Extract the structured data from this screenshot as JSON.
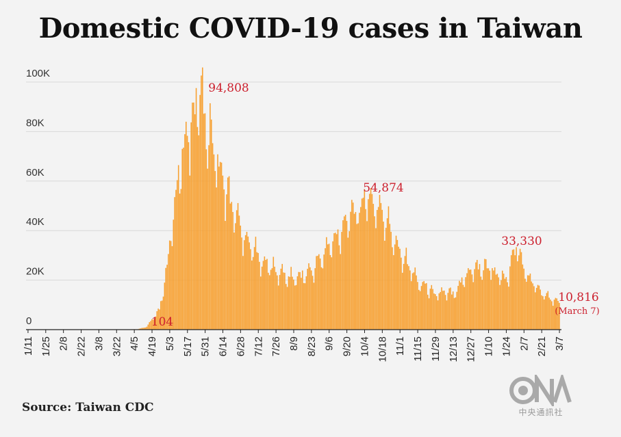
{
  "title": "Domestic COVID-19 cases in Taiwan",
  "source": "Source: Taiwan CDC",
  "logo": {
    "mark": "CNA",
    "text": "中央通訊社"
  },
  "colors": {
    "bar": "#f7a030",
    "annotation": "#cc1f2d",
    "grid": "#d8d8d8"
  },
  "chart_data": {
    "type": "bar",
    "title": "Domestic COVID-19 cases in Taiwan",
    "xlabel": "",
    "ylabel": "",
    "ylim": [
      0,
      100000
    ],
    "grid": true,
    "yticks": [
      {
        "value": 0,
        "label": "0"
      },
      {
        "value": 20000,
        "label": "20K"
      },
      {
        "value": 40000,
        "label": "40K"
      },
      {
        "value": 60000,
        "label": "60K"
      },
      {
        "value": 80000,
        "label": "80K"
      },
      {
        "value": 100000,
        "label": "100K"
      }
    ],
    "xticks": [
      "1/11",
      "1/25",
      "2/8",
      "2/22",
      "3/8",
      "3/22",
      "4/5",
      "4/19",
      "5/3",
      "5/17",
      "5/31",
      "6/14",
      "6/28",
      "7/12",
      "7/26",
      "8/9",
      "8/23",
      "9/6",
      "9/20",
      "10/4",
      "10/18",
      "11/1",
      "11/15",
      "11/29",
      "12/13",
      "12/27",
      "1/10",
      "1/24",
      "2/7",
      "2/21",
      "3/7"
    ],
    "series": [
      {
        "daily_cases": [
          0,
          0,
          0,
          0,
          0,
          0,
          0,
          0,
          0,
          0,
          0,
          0,
          0,
          0,
          0,
          0,
          0,
          0,
          0,
          0,
          0,
          0,
          0,
          0,
          0,
          0,
          0,
          0,
          0,
          0,
          0,
          0,
          0,
          0,
          0,
          0,
          0,
          0,
          0,
          0,
          0,
          0,
          0,
          0,
          0,
          0,
          0,
          0,
          0,
          0,
          0,
          0,
          0,
          0,
          0,
          0,
          0,
          0,
          0,
          0,
          0,
          0,
          0,
          0,
          0,
          0,
          0,
          0,
          0,
          0,
          104,
          0,
          0,
          0,
          0,
          0,
          0,
          0,
          0,
          0,
          0,
          0,
          0,
          0,
          0,
          0,
          0,
          0,
          0,
          0,
          0,
          0,
          0,
          0,
          0,
          0,
          0,
          0,
          0,
          0,
          0,
          0,
          0,
          0,
          0,
          0,
          0,
          0,
          0,
          0,
          0,
          0,
          0,
          0,
          0,
          0,
          0,
          0,
          0,
          0,
          0,
          0,
          0,
          0,
          0,
          0,
          0,
          0,
          0,
          0,
          0,
          0,
          0,
          0,
          0,
          0,
          0,
          0,
          0,
          0,
          0,
          0,
          0,
          0,
          0,
          0,
          0,
          0,
          0,
          0,
          0,
          0,
          0,
          0,
          0,
          0,
          0,
          0,
          0,
          0,
          0,
          0,
          0,
          0,
          0,
          0,
          0,
          0,
          0,
          0,
          0,
          0,
          0,
          0,
          0,
          0,
          0,
          0,
          0,
          0,
          0,
          0,
          0,
          0,
          0,
          0,
          0,
          0,
          0,
          0,
          0,
          0,
          0,
          0,
          0,
          0,
          0,
          0,
          0,
          0,
          0,
          0,
          0,
          0,
          0,
          0,
          0,
          0,
          0,
          0,
          0,
          0,
          0,
          0,
          0,
          0,
          0,
          0,
          0,
          0,
          0,
          0,
          0,
          0,
          0,
          0,
          0,
          0,
          0,
          0,
          0,
          0,
          0,
          0,
          0,
          0,
          0,
          0,
          0,
          0,
          0,
          0,
          0,
          0,
          0,
          0,
          0,
          0,
          0,
          0,
          0,
          0,
          0,
          0,
          0,
          0,
          0,
          0,
          0,
          0,
          0,
          0,
          0,
          0,
          0,
          0,
          0,
          0,
          0,
          0,
          0,
          0,
          0,
          0,
          0,
          0,
          0,
          0,
          0,
          0,
          0,
          0,
          0,
          0,
          0,
          0,
          0,
          0,
          0,
          0,
          0,
          0,
          0,
          0,
          0,
          0,
          0,
          0,
          0,
          0,
          0,
          0,
          0,
          0,
          0,
          0,
          0,
          0,
          0,
          0,
          0,
          0,
          0,
          0,
          0,
          0,
          0,
          0,
          0,
          0,
          0,
          0,
          0,
          0,
          0,
          0,
          0,
          0,
          0,
          0,
          0,
          0,
          0,
          0,
          0,
          0,
          0,
          0,
          0,
          0,
          0,
          0,
          0,
          0,
          0,
          0,
          0,
          0,
          0,
          0,
          0,
          0,
          0,
          0,
          0,
          0,
          0,
          0,
          0,
          0,
          0,
          0,
          0,
          0,
          0,
          0,
          0,
          0,
          0,
          0,
          0,
          0,
          0,
          0,
          0,
          0,
          0,
          0,
          0,
          0,
          0,
          0,
          0,
          0,
          0,
          0,
          0,
          0,
          0,
          0,
          0,
          0,
          0,
          0,
          0,
          0,
          0,
          0,
          0,
          0,
          0,
          0,
          0,
          0,
          0,
          0,
          0,
          0,
          0,
          0,
          0,
          0,
          0,
          0,
          0,
          0,
          0,
          0,
          0,
          0,
          0,
          0,
          0,
          0,
          0,
          0,
          0,
          10816
        ],
        "smoothed_cases": null
      }
    ],
    "annotations": [
      {
        "date": "4/1",
        "value": 104,
        "label": "104"
      },
      {
        "date": "5/27",
        "value": 94808,
        "label": "94,808"
      },
      {
        "date": "10/8",
        "value": 54874,
        "label": "54,874"
      },
      {
        "date": "2/1",
        "value": 33330,
        "label": "33,330"
      },
      {
        "date": "3/7",
        "value": 10816,
        "label": "10,816",
        "note": "(March 7)"
      }
    ]
  }
}
